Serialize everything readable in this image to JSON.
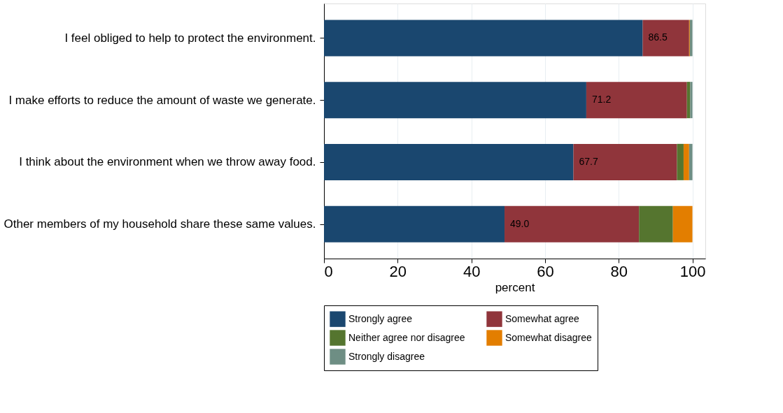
{
  "chart_data": {
    "type": "bar",
    "orientation": "horizontal",
    "stacked": true,
    "xlabel": "percent",
    "categories": [
      "I feel obliged to help to protect the environment.",
      "I make efforts to reduce the amount of waste we generate.",
      "I think about the environment when we throw away food.",
      "Other members of my household share these same values."
    ],
    "series": [
      {
        "name": "Strongly agree",
        "color": "#1a476f",
        "values": [
          86.5,
          71.2,
          67.7,
          49.0
        ],
        "value_labels": [
          "86.5",
          "71.2",
          "67.7",
          "49.0"
        ]
      },
      {
        "name": "Somewhat agree",
        "color": "#90353b",
        "values": [
          12.6,
          27.3,
          28.1,
          36.5
        ]
      },
      {
        "name": "Neither agree nor disagree",
        "color": "#55752f",
        "values": [
          0.0,
          0.9,
          1.8,
          9.2
        ]
      },
      {
        "name": "Somewhat disagree",
        "color": "#e37e00",
        "values": [
          0.2,
          0.0,
          1.5,
          5.3
        ]
      },
      {
        "name": "Strongly disagree",
        "color": "#6e8e84",
        "values": [
          0.7,
          0.6,
          0.9,
          0.0
        ]
      }
    ],
    "xlim": [
      0,
      103.5
    ],
    "xticks": [
      0,
      20,
      40,
      60,
      80,
      100
    ],
    "grid": "x",
    "legend": "bottom"
  }
}
